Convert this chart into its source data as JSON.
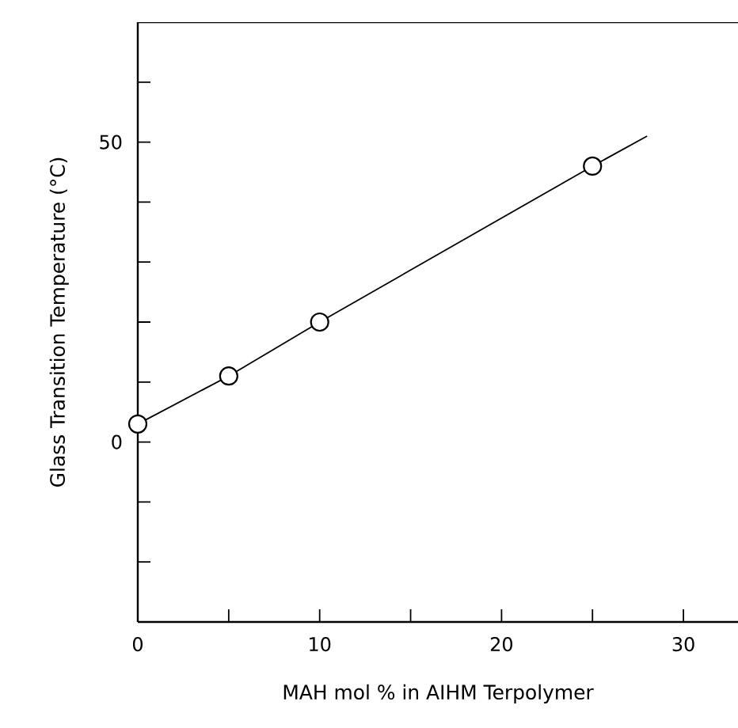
{
  "chart_data": {
    "type": "line",
    "xlabel": "MAH   mol %   in   AIHM   Terpolymer",
    "ylabel": "Glass   Transition   Temperature   (°C)",
    "xlim": [
      0,
      33
    ],
    "ylim": [
      -30,
      70
    ],
    "xticks": [
      0,
      {
        "value": 5,
        "label": null
      },
      10,
      {
        "value": 15,
        "label": null
      },
      20,
      {
        "value": 25,
        "label": null
      },
      30
    ],
    "yticks": [
      {
        "value": -20,
        "label": null
      },
      {
        "value": -10,
        "label": null
      },
      0,
      {
        "value": 10,
        "label": null
      },
      {
        "value": 20,
        "label": null
      },
      {
        "value": 30,
        "label": null
      },
      {
        "value": 40,
        "label": null
      },
      50,
      {
        "value": 60,
        "label": null
      }
    ],
    "series": [
      {
        "type": "scatter",
        "color": "#000000",
        "marker": "circle",
        "x": [
          0,
          5,
          10,
          25
        ],
        "values": [
          3,
          11,
          20,
          46
        ]
      },
      {
        "color": "#000000",
        "marker": "none",
        "line_style": "solid",
        "x": [
          0,
          5,
          10,
          25,
          28
        ],
        "values": [
          3,
          11,
          20,
          46,
          51
        ]
      }
    ]
  }
}
